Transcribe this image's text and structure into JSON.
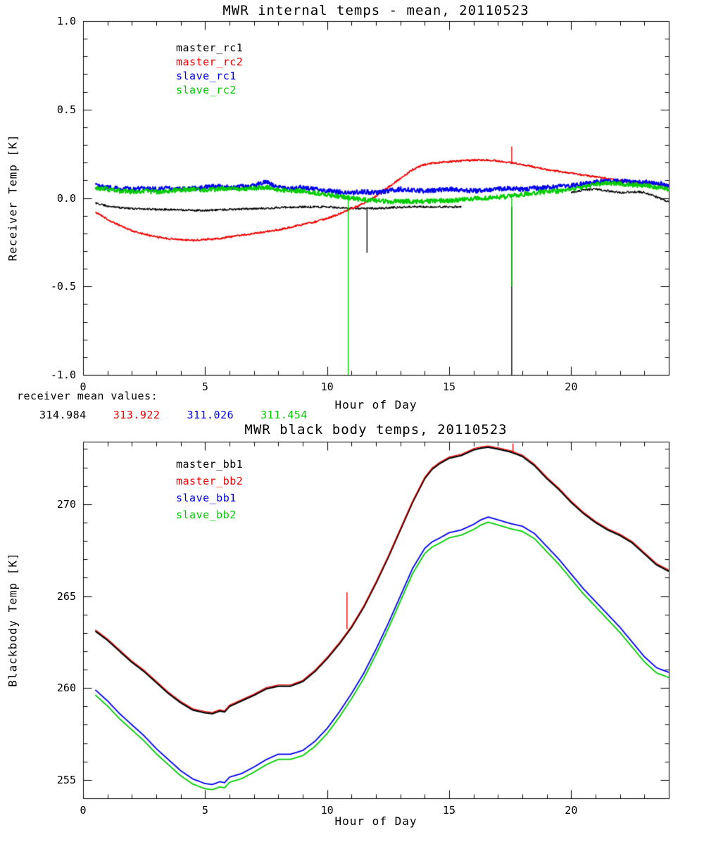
{
  "page": {
    "background": "#ffffff"
  },
  "footnote": {
    "label": "receiver mean values:",
    "values": [
      {
        "text": "314.984",
        "color": "#000000"
      },
      {
        "text": "313.922",
        "color": "#ee0000"
      },
      {
        "text": "311.026",
        "color": "#0000ee"
      },
      {
        "text": "311.454",
        "color": "#00cc00"
      }
    ]
  },
  "chart_data": [
    {
      "type": "line",
      "title": "MWR internal temps - mean, 20110523",
      "xlabel": "Hour of Day",
      "ylabel": "Receiver Temp [K]",
      "xlim": [
        0,
        24
      ],
      "ylim": [
        -1.0,
        1.0
      ],
      "xticks": [
        0,
        5,
        10,
        15,
        20
      ],
      "xtick_labels": [
        "0",
        "5",
        "10",
        "15",
        "20"
      ],
      "yticks": [
        -1.0,
        -0.5,
        0.0,
        0.5,
        1.0
      ],
      "ytick_labels": [
        "-1.0",
        "-0.5",
        "0.0",
        "0.5",
        "1.0"
      ],
      "xminor": 1,
      "yminor": 0.1,
      "grid": false,
      "legend_position": "upper-left-inside",
      "x": [
        0.5,
        1,
        1.5,
        2,
        2.5,
        3,
        3.5,
        4,
        4.5,
        5,
        5.5,
        6,
        6.5,
        7,
        7.5,
        8,
        8.5,
        9,
        9.5,
        10,
        10.5,
        11,
        11.5,
        12,
        12.5,
        13,
        13.5,
        14,
        14.5,
        15,
        15.5,
        16,
        16.5,
        17,
        17.5,
        18,
        18.5,
        19,
        19.5,
        20,
        20.5,
        21,
        21.5,
        22,
        22.5,
        23,
        23.5,
        24
      ],
      "series": [
        {
          "name": "master_rc1",
          "color": "#000000",
          "width": 1.3,
          "noise": 0.006,
          "values": [
            -0.03,
            -0.045,
            -0.055,
            -0.06,
            -0.062,
            -0.065,
            -0.065,
            -0.068,
            -0.07,
            -0.07,
            -0.068,
            -0.065,
            -0.062,
            -0.06,
            -0.058,
            -0.055,
            -0.052,
            -0.05,
            -0.05,
            -0.05,
            -0.055,
            -0.058,
            -0.06,
            -0.058,
            -0.055,
            -0.052,
            -0.05,
            -0.05,
            -0.05,
            -0.05,
            -0.05,
            null,
            null,
            null,
            null,
            null,
            null,
            null,
            null,
            0.03,
            0.045,
            0.05,
            0.04,
            0.03,
            0.035,
            0.032,
            0.005,
            -0.02
          ]
        },
        {
          "name": "master_rc2",
          "color": "#ee0000",
          "width": 1.6,
          "noise": 0.005,
          "values": [
            -0.08,
            -0.12,
            -0.155,
            -0.185,
            -0.205,
            -0.22,
            -0.23,
            -0.235,
            -0.24,
            -0.235,
            -0.23,
            -0.22,
            -0.21,
            -0.2,
            -0.19,
            -0.18,
            -0.165,
            -0.15,
            -0.135,
            -0.115,
            -0.09,
            -0.06,
            -0.03,
            0.01,
            0.06,
            0.11,
            0.16,
            0.19,
            0.2,
            0.205,
            0.21,
            0.215,
            0.215,
            0.21,
            0.2,
            0.19,
            0.175,
            0.16,
            0.15,
            0.14,
            0.13,
            0.12,
            0.11,
            0.1,
            0.09,
            0.085,
            0.078,
            0.07
          ]
        },
        {
          "name": "slave_rc1",
          "color": "#0000ee",
          "width": 2.0,
          "noise": 0.013,
          "values": [
            0.07,
            0.06,
            0.055,
            0.05,
            0.055,
            0.05,
            0.055,
            0.05,
            0.055,
            0.06,
            0.065,
            0.06,
            0.065,
            0.07,
            0.09,
            0.06,
            0.055,
            0.06,
            0.05,
            0.04,
            0.035,
            0.03,
            0.035,
            0.03,
            0.04,
            0.05,
            0.045,
            0.04,
            0.045,
            0.05,
            0.045,
            0.04,
            0.045,
            0.05,
            0.055,
            0.05,
            0.055,
            0.06,
            0.065,
            0.07,
            0.08,
            0.09,
            0.095,
            0.095,
            0.09,
            0.09,
            0.085,
            0.07
          ]
        },
        {
          "name": "slave_rc2",
          "color": "#00cc00",
          "width": 2.0,
          "noise": 0.013,
          "values": [
            0.055,
            0.05,
            0.04,
            0.035,
            0.04,
            0.035,
            0.04,
            0.045,
            0.05,
            0.045,
            0.05,
            0.055,
            0.05,
            0.055,
            0.06,
            0.045,
            0.04,
            0.04,
            0.03,
            0.02,
            0.01,
            0.0,
            -0.01,
            -0.015,
            -0.02,
            -0.02,
            -0.02,
            -0.02,
            -0.015,
            -0.015,
            -0.01,
            -0.005,
            0.0,
            0.005,
            0.01,
            0.02,
            0.03,
            0.035,
            0.04,
            0.05,
            0.06,
            0.075,
            0.085,
            0.08,
            0.075,
            0.07,
            0.06,
            0.05
          ]
        }
      ],
      "spikes": [
        {
          "series": "slave_rc2",
          "x": 10.85,
          "from": 0.02,
          "to": -1.0
        },
        {
          "series": "master_rc1",
          "x": 11.62,
          "from": -0.06,
          "to": -0.31
        },
        {
          "series": "master_rc1",
          "x": 17.55,
          "from": -0.05,
          "to": -1.0
        },
        {
          "series": "slave_rc2",
          "x": 17.55,
          "from": 0.01,
          "to": -0.5
        },
        {
          "series": "master_rc2",
          "x": 17.55,
          "from": 0.29,
          "to": 0.2
        }
      ]
    },
    {
      "type": "line",
      "title": "MWR black body temps, 20110523",
      "xlabel": "Hour of Day",
      "ylabel": "Blackbody Temp [K]",
      "xlim": [
        0,
        24
      ],
      "ylim": [
        254.0,
        273.4
      ],
      "xticks": [
        0,
        5,
        10,
        15,
        20
      ],
      "xtick_labels": [
        "0",
        "5",
        "10",
        "15",
        "20"
      ],
      "yticks": [
        255,
        260,
        265,
        270
      ],
      "ytick_labels": [
        "255",
        "260",
        "265",
        "270"
      ],
      "xminor": 1,
      "yminor": 1,
      "grid": false,
      "legend_position": "upper-left-inside",
      "x": [
        0.5,
        1,
        1.5,
        2,
        2.5,
        3,
        3.5,
        4,
        4.5,
        5,
        5.3,
        5.6,
        5.8,
        6,
        6.5,
        7,
        7.5,
        8,
        8.5,
        9,
        9.5,
        10,
        10.5,
        11,
        11.5,
        12,
        12.5,
        13,
        13.5,
        14,
        14.3,
        14.6,
        15,
        15.5,
        16,
        16.3,
        16.6,
        17,
        17.5,
        18,
        18.5,
        19,
        19.5,
        20,
        20.5,
        21,
        21.5,
        22,
        22.5,
        23,
        23.5,
        24
      ],
      "series": [
        {
          "name": "master_bb1",
          "color": "#000000",
          "width": 2.2,
          "noise": 0,
          "values": [
            263.1,
            262.6,
            262.0,
            261.4,
            260.9,
            260.3,
            259.7,
            259.2,
            258.8,
            258.65,
            258.6,
            258.75,
            258.7,
            259.0,
            259.3,
            259.6,
            259.95,
            260.1,
            260.1,
            260.35,
            260.9,
            261.6,
            262.4,
            263.3,
            264.4,
            265.7,
            267.1,
            268.6,
            270.1,
            271.4,
            271.9,
            272.2,
            272.5,
            272.65,
            272.95,
            273.05,
            273.1,
            273.0,
            272.85,
            272.6,
            272.1,
            271.4,
            270.8,
            270.1,
            269.5,
            269.0,
            268.6,
            268.3,
            267.9,
            267.3,
            266.7,
            266.35
          ]
        },
        {
          "name": "master_bb2",
          "color": "#ee0000",
          "width": 1.2,
          "noise": 0,
          "values": [
            263.17,
            262.67,
            262.07,
            261.47,
            260.97,
            260.37,
            259.77,
            259.27,
            258.87,
            258.72,
            258.67,
            258.82,
            258.77,
            259.07,
            259.37,
            259.67,
            260.02,
            260.17,
            260.17,
            260.42,
            260.97,
            261.67,
            262.47,
            263.37,
            264.47,
            265.77,
            267.17,
            268.67,
            270.17,
            271.47,
            271.97,
            272.27,
            272.57,
            272.72,
            273.02,
            273.12,
            273.17,
            273.07,
            272.92,
            272.67,
            272.17,
            271.47,
            270.87,
            270.17,
            269.57,
            269.07,
            268.67,
            268.37,
            267.97,
            267.37,
            266.77,
            266.42
          ]
        },
        {
          "name": "slave_bb1",
          "color": "#0000ee",
          "width": 1.8,
          "noise": 0,
          "values": [
            259.9,
            259.3,
            258.6,
            258.0,
            257.4,
            256.7,
            256.1,
            255.5,
            255.05,
            254.8,
            254.75,
            254.9,
            254.85,
            255.15,
            255.35,
            255.7,
            256.1,
            256.4,
            256.4,
            256.6,
            257.1,
            257.8,
            258.7,
            259.7,
            260.8,
            262.1,
            263.5,
            265.0,
            266.5,
            267.6,
            267.95,
            268.15,
            268.45,
            268.6,
            268.9,
            269.15,
            269.3,
            269.15,
            268.95,
            268.8,
            268.4,
            267.7,
            267.0,
            266.2,
            265.4,
            264.7,
            264.0,
            263.3,
            262.5,
            261.7,
            261.1,
            260.85
          ]
        },
        {
          "name": "slave_bb2",
          "color": "#00cc00",
          "width": 1.8,
          "noise": 0,
          "values": [
            259.62,
            259.02,
            258.32,
            257.72,
            257.12,
            256.42,
            255.82,
            255.22,
            254.77,
            254.52,
            254.47,
            254.62,
            254.57,
            254.87,
            255.07,
            255.42,
            255.82,
            256.12,
            256.12,
            256.32,
            256.82,
            257.52,
            258.42,
            259.42,
            260.52,
            261.82,
            263.22,
            264.72,
            266.22,
            267.32,
            267.67,
            267.87,
            268.17,
            268.32,
            268.62,
            268.87,
            269.02,
            268.87,
            268.67,
            268.52,
            268.12,
            267.42,
            266.72,
            265.92,
            265.12,
            264.42,
            263.72,
            263.02,
            262.22,
            261.42,
            260.82,
            260.57
          ]
        }
      ],
      "spikes": [
        {
          "series": "master_bb2",
          "x": 10.8,
          "from": 263.2,
          "to": 265.2
        },
        {
          "series": "master_bb2",
          "x": 17.6,
          "from": 272.8,
          "to": 273.3
        }
      ]
    }
  ]
}
